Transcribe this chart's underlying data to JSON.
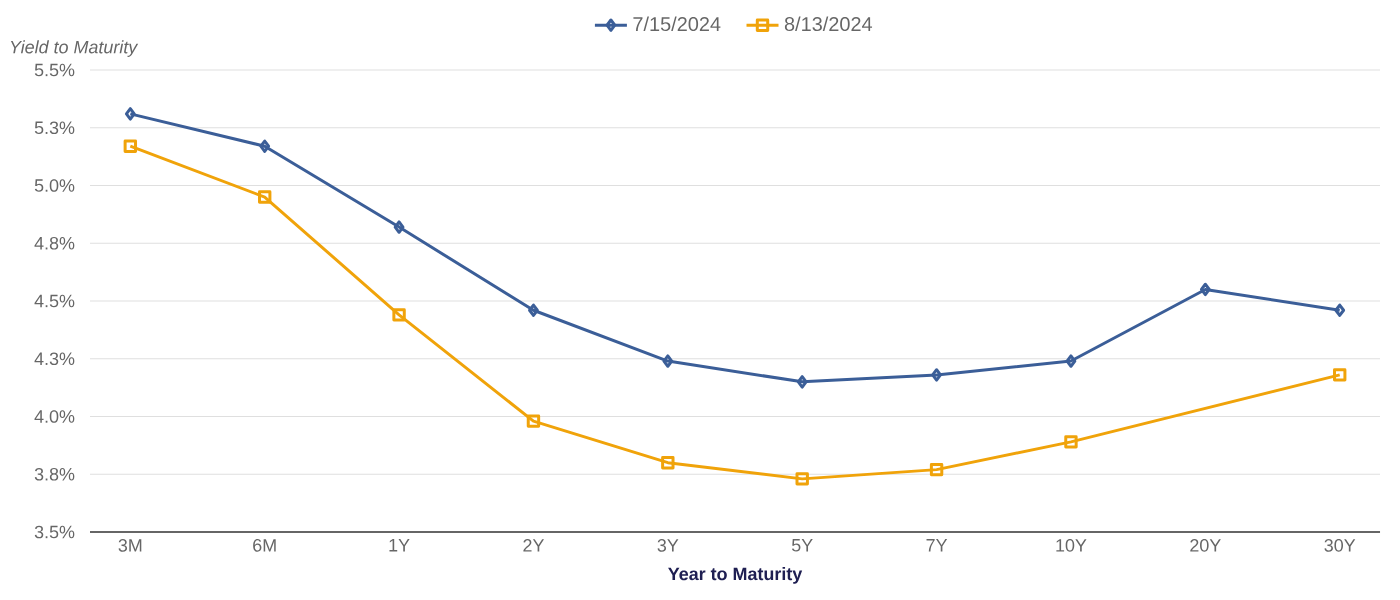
{
  "chart_data": {
    "type": "line",
    "xlabel": "Year to Maturity",
    "ylabel": "Yield to Maturity",
    "categories": [
      "3M",
      "6M",
      "1Y",
      "2Y",
      "3Y",
      "5Y",
      "7Y",
      "10Y",
      "20Y",
      "30Y"
    ],
    "ylim": [
      3.5,
      5.5
    ],
    "yticks": [
      {
        "value": 3.5,
        "label": "3.5%"
      },
      {
        "value": 3.75,
        "label": "3.8%"
      },
      {
        "value": 4.0,
        "label": "4.0%"
      },
      {
        "value": 4.25,
        "label": "4.3%"
      },
      {
        "value": 4.5,
        "label": "4.5%"
      },
      {
        "value": 4.75,
        "label": "4.8%"
      },
      {
        "value": 5.0,
        "label": "5.0%"
      },
      {
        "value": 5.25,
        "label": "5.3%"
      },
      {
        "value": 5.5,
        "label": "5.5%"
      }
    ],
    "series": [
      {
        "name": "7/15/2024",
        "color": "#3b5e98",
        "marker": "diamond",
        "values": [
          5.31,
          5.17,
          4.82,
          4.46,
          4.24,
          4.15,
          4.18,
          4.24,
          4.55,
          4.46
        ]
      },
      {
        "name": "8/13/2024",
        "color": "#f0a30a",
        "marker": "square",
        "values": [
          5.17,
          4.95,
          4.44,
          3.98,
          3.8,
          3.73,
          3.77,
          3.89,
          null,
          4.18
        ]
      }
    ],
    "line_style": "solid",
    "grid": "y",
    "legend": "top"
  }
}
